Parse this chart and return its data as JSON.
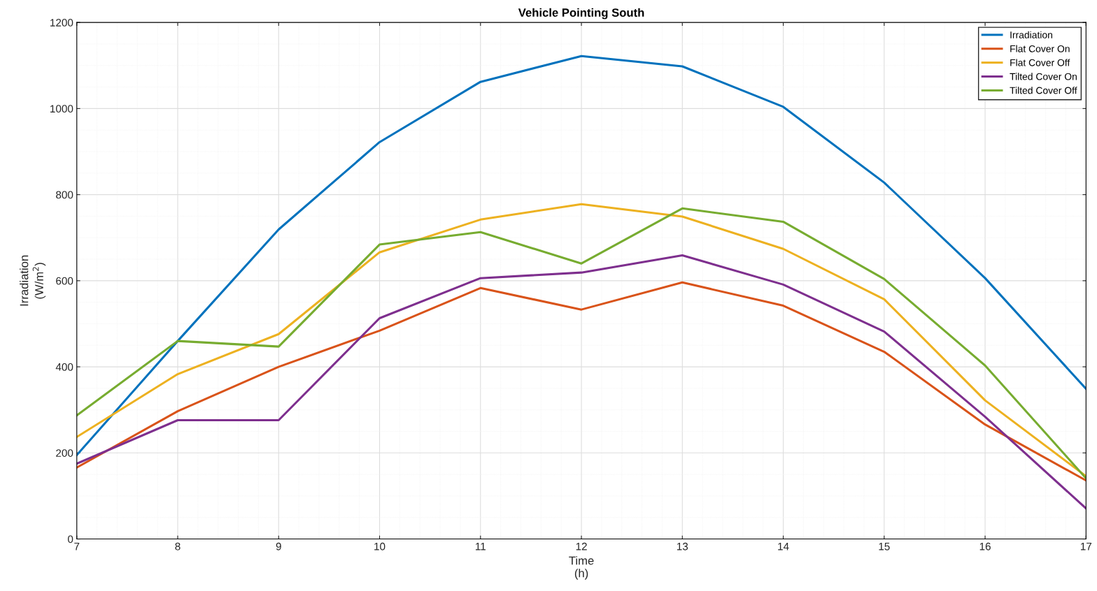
{
  "chart_data": {
    "type": "line",
    "title": "Vehicle Pointing South",
    "xlabel": "Time\n(h)",
    "ylabel": "Irradiation\n(W/m$^{2}$)",
    "x": [
      7,
      8,
      9,
      10,
      11,
      12,
      13,
      14,
      15,
      16,
      17
    ],
    "series": [
      {
        "name": "Irradiation",
        "color": "#0072bd",
        "values": [
          195,
          460,
          719,
          922,
          1062,
          1122,
          1098,
          1004,
          828,
          606,
          349
        ]
      },
      {
        "name": "Flat Cover On",
        "color": "#d95319",
        "values": [
          166,
          297,
          400,
          484,
          583,
          533,
          596,
          542,
          435,
          266,
          136
        ]
      },
      {
        "name": "Flat Cover Off",
        "color": "#edb120",
        "values": [
          237,
          383,
          476,
          666,
          742,
          778,
          749,
          674,
          557,
          322,
          146
        ]
      },
      {
        "name": "Tilted Cover On",
        "color": "#7e2f8e",
        "values": [
          175,
          276,
          276,
          513,
          606,
          619,
          659,
          591,
          482,
          284,
          71
        ]
      },
      {
        "name": "Tilted Cover Off",
        "color": "#77ac30",
        "values": [
          287,
          460,
          447,
          684,
          713,
          640,
          768,
          737,
          604,
          403,
          141
        ]
      }
    ],
    "xlim": [
      7,
      17
    ],
    "xticks": [
      7,
      8,
      9,
      10,
      11,
      12,
      13,
      14,
      15,
      16,
      17
    ],
    "ylim": [
      0,
      1200
    ],
    "yticks": [
      0,
      200,
      400,
      600,
      800,
      1000,
      1200
    ],
    "grid": true,
    "legend": "top right",
    "marker": "none",
    "line_style": "solid"
  }
}
